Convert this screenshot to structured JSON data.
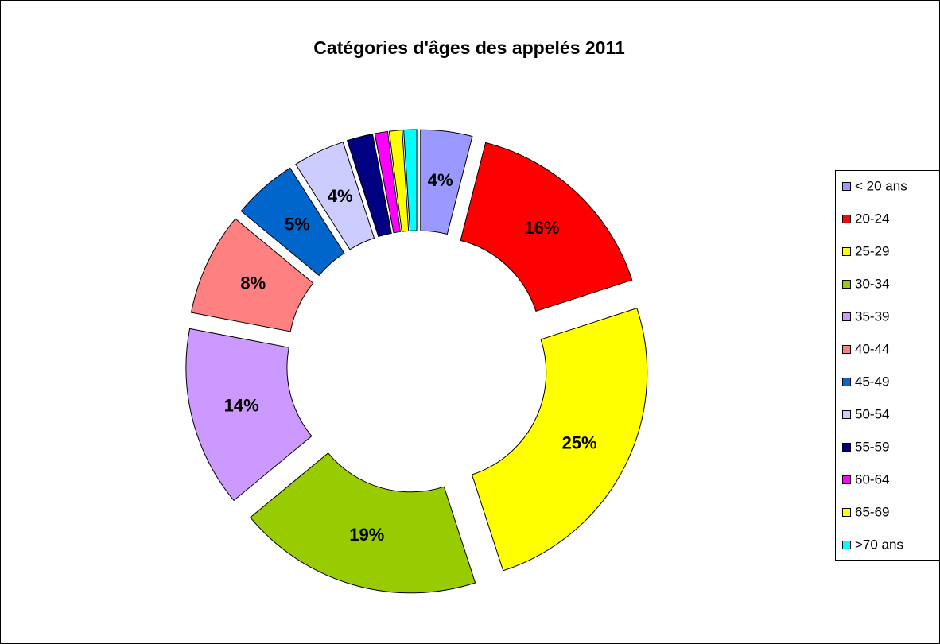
{
  "chart_data": {
    "type": "doughnut",
    "title": "Catégories d'âges des appelés 2011",
    "categories": [
      "< 20 ans",
      "20-24",
      "25-29",
      "30-34",
      "35-39",
      "40-44",
      "45-49",
      "50-54",
      "55-59",
      "60-64",
      "65-69",
      ">70 ans"
    ],
    "values": [
      4,
      16,
      25,
      19,
      14,
      8,
      5,
      4,
      2,
      1,
      1,
      1
    ],
    "value_labels": [
      "4%",
      "16%",
      "25%",
      "19%",
      "14%",
      "8%",
      "5%",
      "4%",
      null,
      null,
      null,
      null
    ],
    "colors": [
      "#9999ff",
      "#ff0000",
      "#ffff00",
      "#99cc00",
      "#cc99ff",
      "#ff8080",
      "#0066cc",
      "#ccccff",
      "#000080",
      "#ff00ff",
      "#ffff00",
      "#00ffff"
    ],
    "legend": "right"
  }
}
